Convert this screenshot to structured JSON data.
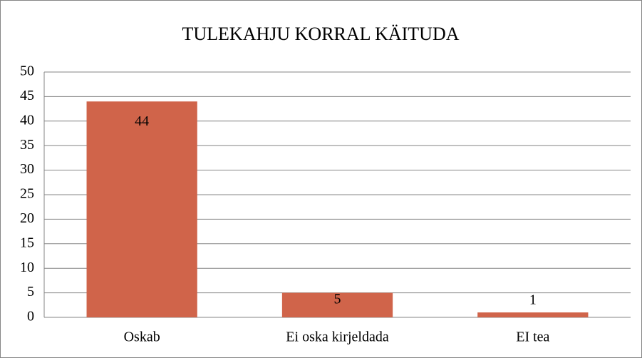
{
  "chart_data": {
    "type": "bar",
    "title": "TULEKAHJU KORRAL KÄITUDA",
    "categories": [
      "Oskab",
      "Ei oska kirjeldada",
      "EI tea"
    ],
    "values": [
      44,
      5,
      1
    ],
    "color": "#d0644a",
    "ylim": [
      0,
      50
    ],
    "yticks": [
      0,
      5,
      10,
      15,
      20,
      25,
      30,
      35,
      40,
      45,
      50
    ],
    "grid": true
  }
}
